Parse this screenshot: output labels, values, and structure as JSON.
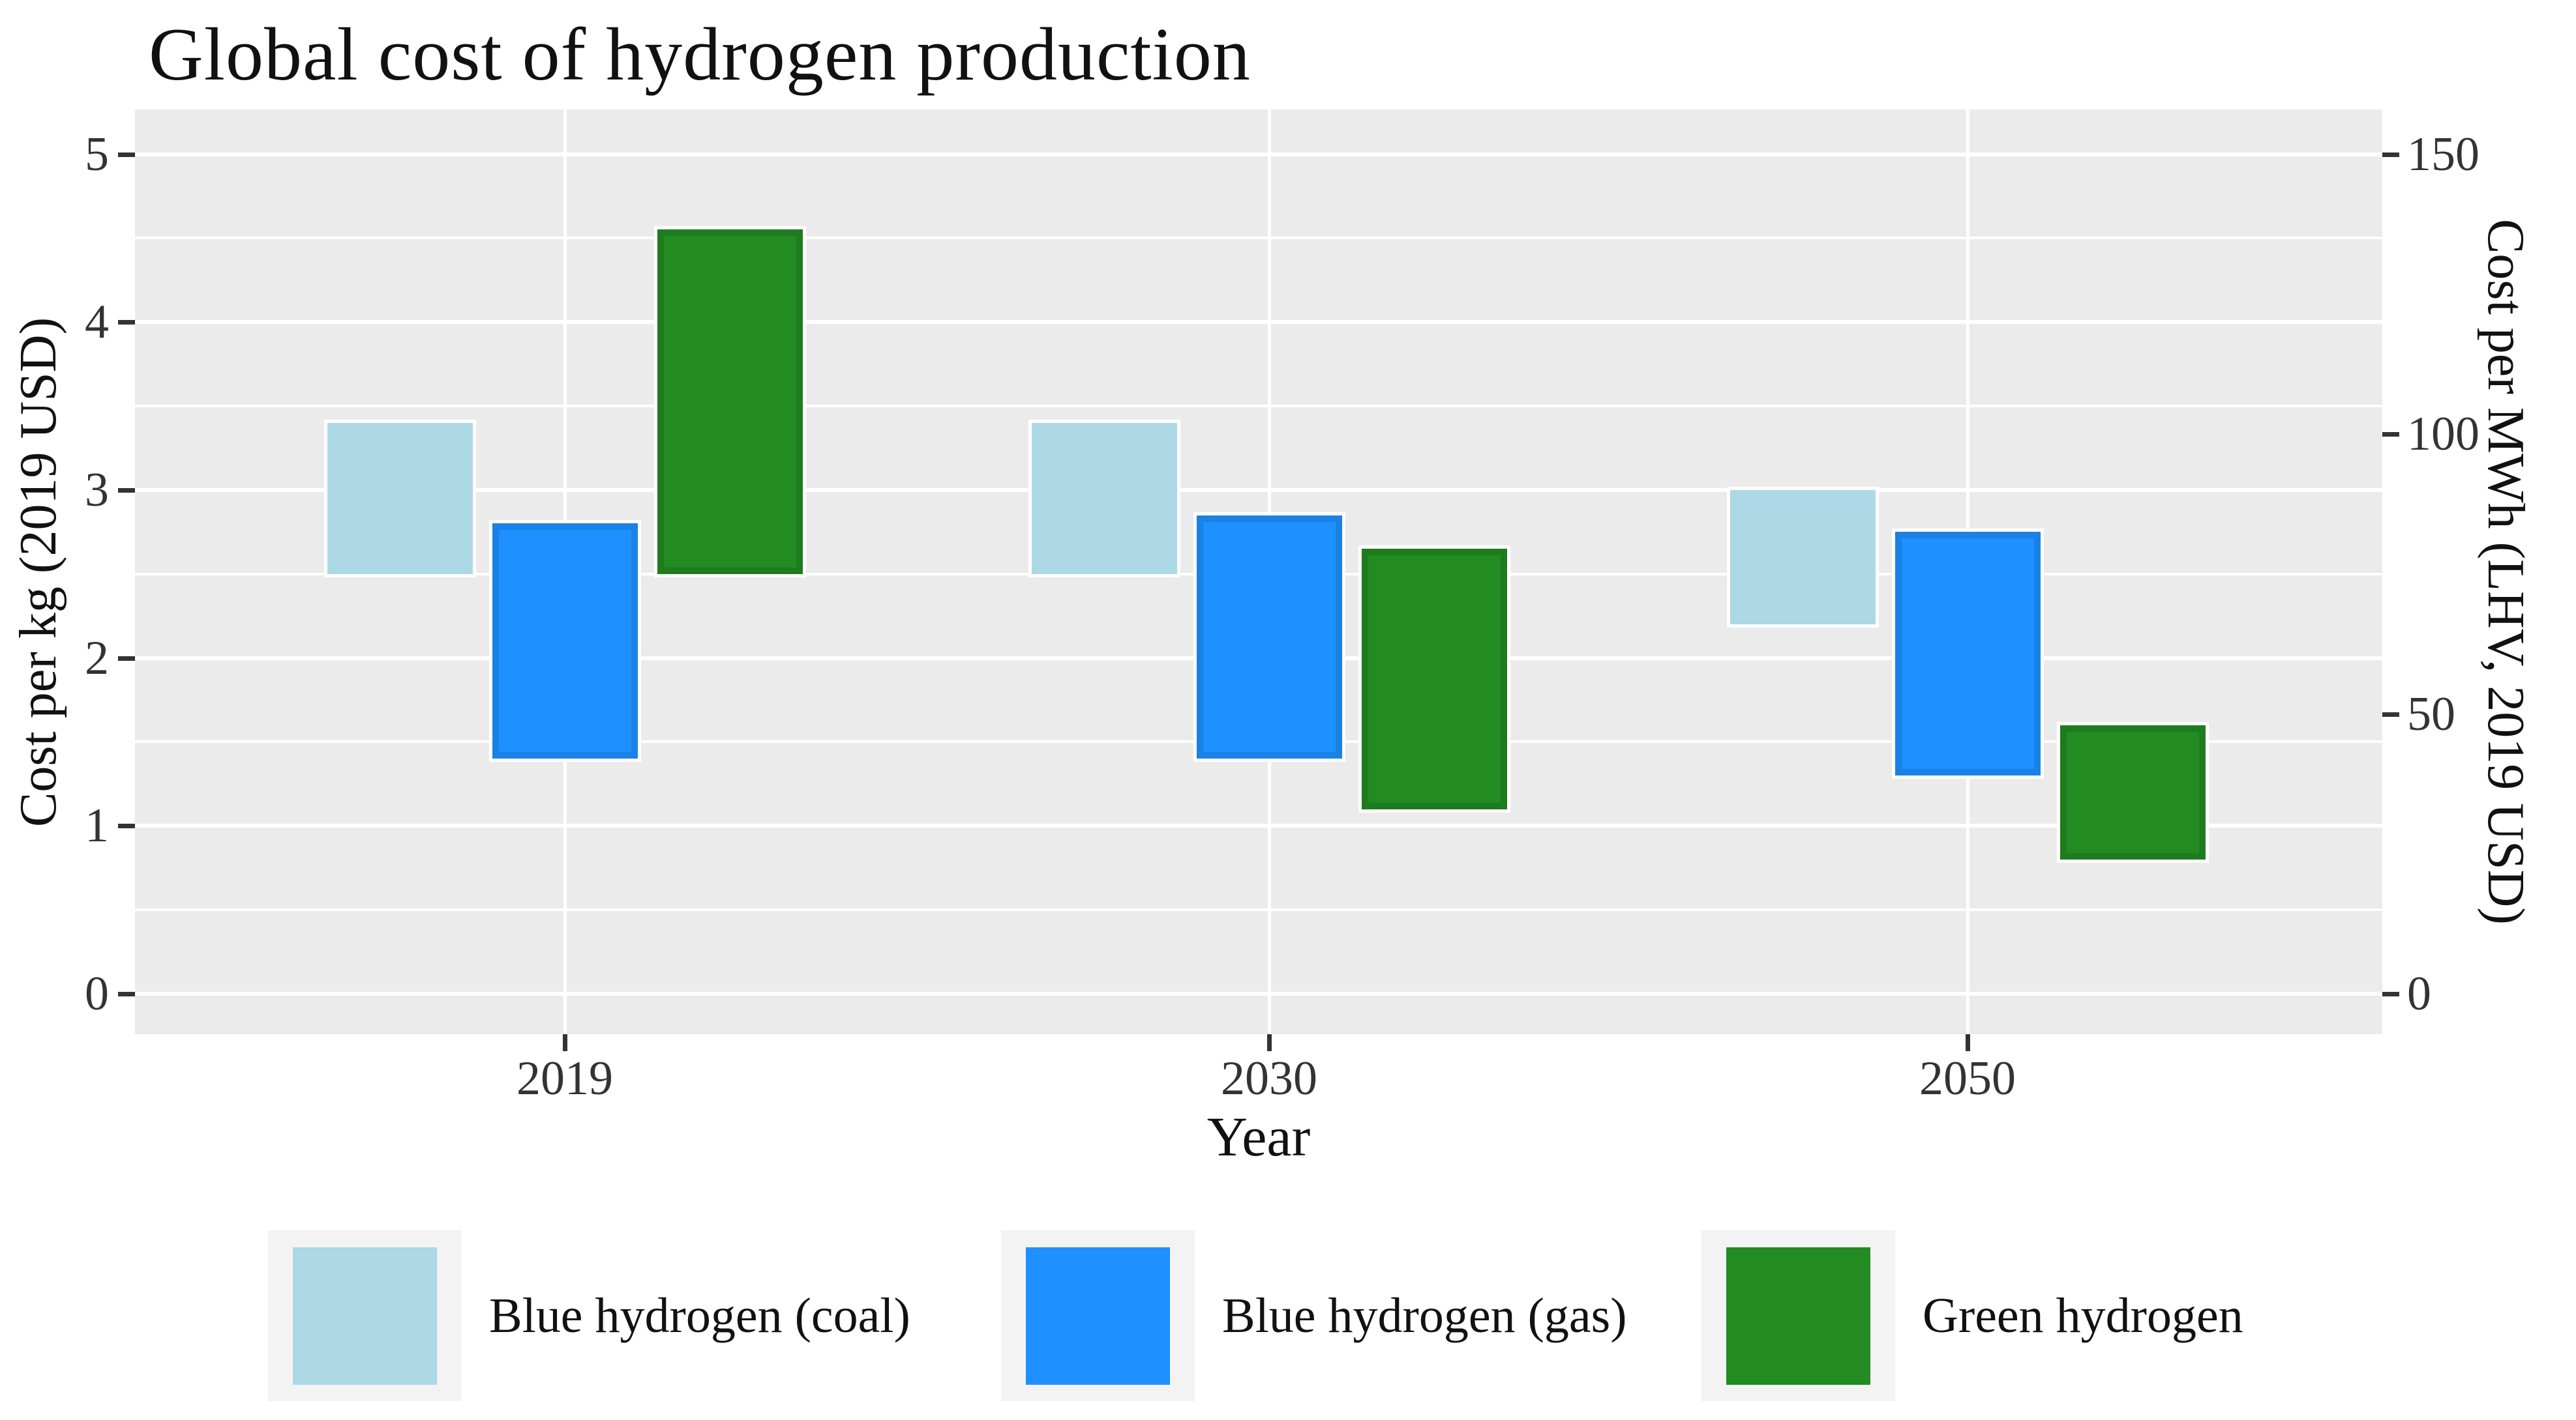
{
  "title": "Global cost of hydrogen production",
  "axes": {
    "left": {
      "title": "Cost per kg (2019 USD)"
    },
    "right": {
      "title": "Cost per MWh (LHV, 2019 USD)"
    },
    "x": {
      "title": "Year"
    }
  },
  "chart_data": {
    "type": "bar",
    "subtype": "floating_range_columns",
    "title": "Global cost of hydrogen production",
    "xlabel": "Year",
    "ylabel_left": "Cost per kg (2019 USD)",
    "ylabel_right": "Cost per MWh (LHV, 2019 USD)",
    "categories": [
      "2019",
      "2030",
      "2050"
    ],
    "series": [
      {
        "name": "Blue hydrogen (coal)",
        "color": "#ADD8E6",
        "unit": "USD per kg",
        "ranges": [
          {
            "low": 2.5,
            "high": 3.4
          },
          {
            "low": 2.5,
            "high": 3.4
          },
          {
            "low": 2.2,
            "high": 3.0
          }
        ]
      },
      {
        "name": "Blue hydrogen (gas)",
        "color": "#1E90FF",
        "unit": "USD per kg",
        "ranges": [
          {
            "low": 1.4,
            "high": 2.8
          },
          {
            "low": 1.4,
            "high": 2.85
          },
          {
            "low": 1.3,
            "high": 2.75
          }
        ]
      },
      {
        "name": "Green hydrogen",
        "color": "#228B22",
        "unit": "USD per kg",
        "ranges": [
          {
            "low": 2.5,
            "high": 4.55
          },
          {
            "low": 1.1,
            "high": 2.65
          },
          {
            "low": 0.8,
            "high": 1.6
          }
        ]
      }
    ],
    "y_left_ticks": [
      0,
      1,
      2,
      3,
      4,
      5
    ],
    "y_right_ticks": [
      0,
      50,
      100,
      150
    ],
    "ylim_left": [
      -0.24,
      5.27
    ],
    "right_axis_mwh_per_kg_factor": 30,
    "grid": {
      "horizontal_major": [
        0,
        1,
        2,
        3,
        4,
        5
      ],
      "horizontal_minor": [
        0.5,
        1.5,
        2.5,
        3.5,
        4.5
      ],
      "vertical_major": "one white gridline at each category center"
    },
    "legend_position": "bottom",
    "colors": {
      "panel_background": "#EBEBEB",
      "gridline": "#FFFFFF",
      "axis_text": "#333333",
      "title_text": "#111111",
      "legend_key_background": "#F3F3F3"
    }
  }
}
